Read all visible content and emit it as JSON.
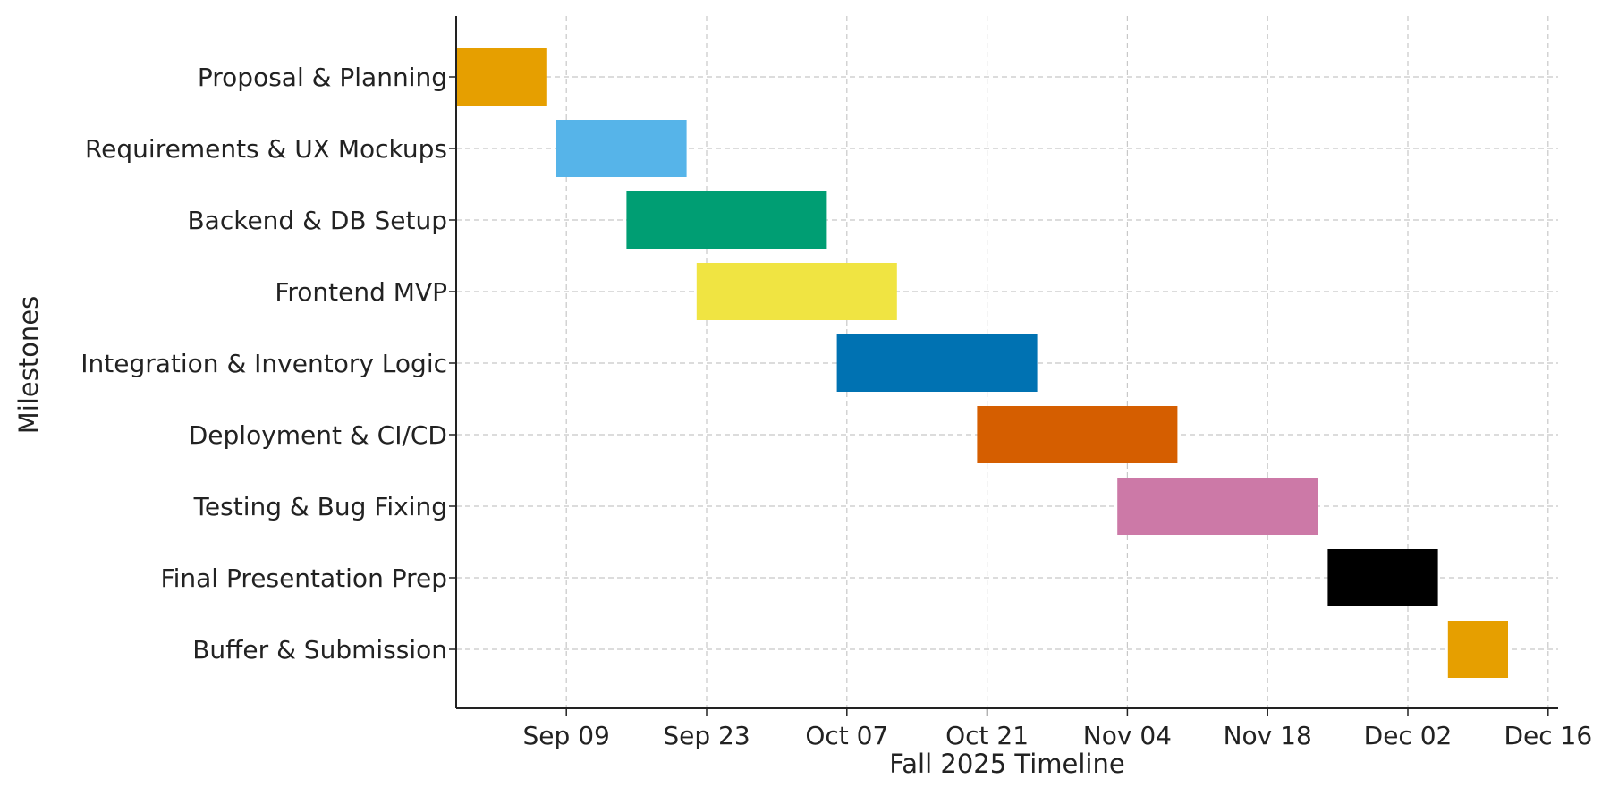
{
  "chart_data": {
    "type": "gantt",
    "title": "",
    "xlabel": "Fall 2025 Timeline",
    "ylabel": "Milestones",
    "x_ticks": [
      "Sep 09",
      "Sep 23",
      "Oct 07",
      "Oct 21",
      "Nov 04",
      "Nov 18",
      "Dec 02",
      "Dec 16"
    ],
    "x_tick_dates": [
      "2025-09-09",
      "2025-09-23",
      "2025-10-07",
      "2025-10-21",
      "2025-11-04",
      "2025-11-18",
      "2025-12-02",
      "2025-12-16"
    ],
    "xlim": [
      "2025-08-29",
      "2025-12-17"
    ],
    "grid": true,
    "tasks": [
      {
        "name": "Proposal & Planning",
        "start": "2025-08-29",
        "end": "2025-09-07",
        "color": "#E69F00"
      },
      {
        "name": "Requirements & UX Mockups",
        "start": "2025-09-08",
        "end": "2025-09-21",
        "color": "#56B4E9"
      },
      {
        "name": "Backend & DB Setup",
        "start": "2025-09-15",
        "end": "2025-10-05",
        "color": "#009E73"
      },
      {
        "name": "Frontend MVP",
        "start": "2025-09-22",
        "end": "2025-10-12",
        "color": "#F0E442"
      },
      {
        "name": "Integration & Inventory Logic",
        "start": "2025-10-06",
        "end": "2025-10-26",
        "color": "#0072B2"
      },
      {
        "name": "Deployment & CI/CD",
        "start": "2025-10-20",
        "end": "2025-11-09",
        "color": "#D55E00"
      },
      {
        "name": "Testing & Bug Fixing",
        "start": "2025-11-03",
        "end": "2025-11-23",
        "color": "#CC79A7"
      },
      {
        "name": "Final Presentation Prep",
        "start": "2025-11-24",
        "end": "2025-12-05",
        "color": "#000000"
      },
      {
        "name": "Buffer & Submission",
        "start": "2025-12-06",
        "end": "2025-12-12",
        "color": "#E69F00"
      }
    ]
  }
}
